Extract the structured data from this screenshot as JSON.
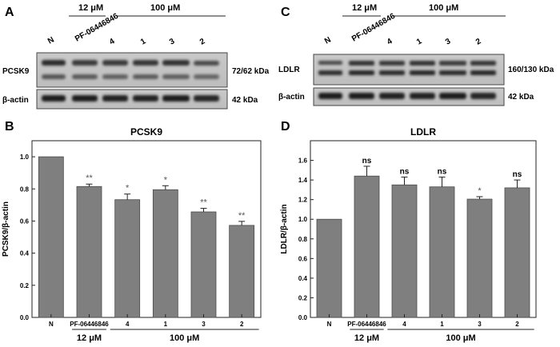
{
  "panels": {
    "a": "A",
    "b": "B",
    "c": "C",
    "d": "D"
  },
  "blots": {
    "left": {
      "conc_12": "12 μM",
      "conc_100": "100 μM",
      "lanes": [
        "N",
        "PF-06446846",
        "4",
        "1",
        "3",
        "2"
      ],
      "band_top": "PCSK9",
      "band_top_size": "72/62 kDa",
      "band_bottom": "β-actin",
      "band_bottom_size": "42 kDa"
    },
    "right": {
      "conc_12": "12 μM",
      "conc_100": "100 μM",
      "lanes": [
        "N",
        "PF-06446846",
        "4",
        "1",
        "3",
        "2"
      ],
      "band_top": "LDLR",
      "band_top_size": "160/130 kDa",
      "band_bottom": "β-actin",
      "band_bottom_size": "42 kDa"
    }
  },
  "chart_data": [
    {
      "type": "bar",
      "title": "PCSK9",
      "ylabel": "PCSK9/β-actin",
      "xlabel": "",
      "categories": [
        "N",
        "PF-06446846",
        "4",
        "1",
        "3",
        "2"
      ],
      "values": [
        1.0,
        0.815,
        0.733,
        0.795,
        0.657,
        0.573
      ],
      "errors": [
        0.0,
        0.015,
        0.035,
        0.025,
        0.022,
        0.025
      ],
      "significance": [
        "",
        "**",
        "*",
        "*",
        "**",
        "**"
      ],
      "ylim": [
        0,
        1.1
      ],
      "yticks": [
        "0.0",
        "0.2",
        "0.4",
        "0.6",
        "0.8",
        "1.0"
      ],
      "yticks_values": [
        0,
        0.2,
        0.4,
        0.6,
        0.8,
        1.0
      ],
      "group_labels": [
        "12 μM",
        "100 μM"
      ],
      "bar_color": "#7f7f7f",
      "grid": false
    },
    {
      "type": "bar",
      "title": "LDLR",
      "ylabel": "LDLR/β-actin",
      "xlabel": "",
      "categories": [
        "N",
        "PF-06446846",
        "4",
        "1",
        "3",
        "2"
      ],
      "values": [
        1.0,
        1.44,
        1.35,
        1.33,
        1.205,
        1.32
      ],
      "errors": [
        0.0,
        0.1,
        0.08,
        0.1,
        0.025,
        0.08
      ],
      "significance": [
        "",
        "ns",
        "ns",
        "ns",
        "*",
        "ns"
      ],
      "ylim": [
        0,
        1.8
      ],
      "yticks": [
        "0.0",
        "0.2",
        "0.4",
        "0.6",
        "0.8",
        "1.0",
        "1.2",
        "1.4",
        "1.6"
      ],
      "yticks_values": [
        0,
        0.2,
        0.4,
        0.6,
        0.8,
        1.0,
        1.2,
        1.4,
        1.6
      ],
      "group_labels": [
        "12 μM",
        "100 μM"
      ],
      "bar_color": "#7f7f7f",
      "grid": false
    }
  ]
}
